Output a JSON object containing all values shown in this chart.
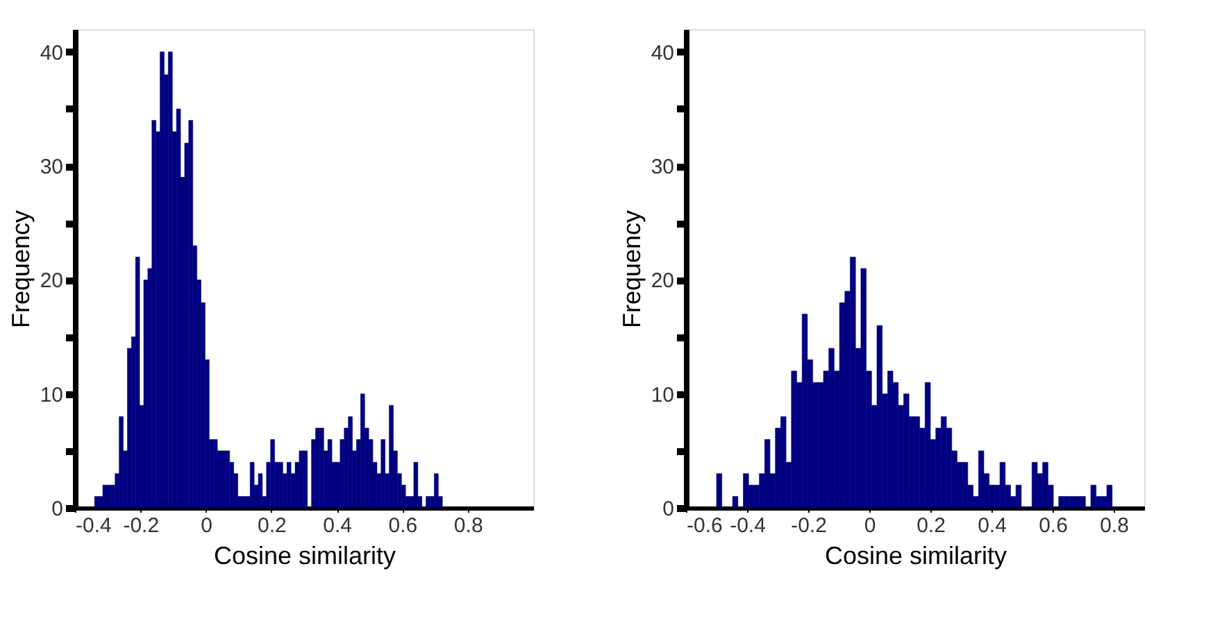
{
  "chart_data": [
    {
      "type": "histogram",
      "xlabel": "Cosine similarity",
      "ylabel": "Frequency",
      "color": "#000080",
      "grid": false,
      "bins": [
        -0.34,
        -0.3275,
        -0.315,
        -0.3025,
        -0.29,
        -0.2775,
        -0.265,
        -0.2525,
        -0.24,
        -0.2275,
        -0.215,
        -0.2025,
        -0.19,
        -0.1775,
        -0.165,
        -0.1525,
        -0.14,
        -0.1275,
        -0.115,
        -0.1025,
        -0.09,
        -0.0775,
        -0.065,
        -0.0525,
        -0.04,
        -0.0275,
        -0.015,
        -0.0025,
        0.01,
        0.0225,
        0.035,
        0.0475,
        0.06,
        0.0725,
        0.085,
        0.0975,
        0.11,
        0.1225,
        0.135,
        0.1475,
        0.16,
        0.1725,
        0.185,
        0.1975,
        0.21,
        0.2225,
        0.235,
        0.2475,
        0.26,
        0.2725,
        0.285,
        0.2975,
        0.31,
        0.3225,
        0.335,
        0.3475,
        0.36,
        0.3725,
        0.385,
        0.3975,
        0.41,
        0.4225,
        0.435,
        0.4475,
        0.46,
        0.4725,
        0.485,
        0.4975,
        0.51,
        0.5225,
        0.535,
        0.5475,
        0.56,
        0.5725,
        0.585,
        0.5975,
        0.61,
        0.6225,
        0.635,
        0.6475,
        0.66,
        0.6725,
        0.685,
        0.6975,
        0.71,
        0.7225
      ],
      "values": [
        1,
        1,
        2,
        2,
        2,
        3,
        8,
        5,
        14,
        15,
        22,
        9,
        20,
        21,
        34,
        33,
        40,
        38,
        40,
        33,
        35,
        29,
        32,
        34,
        23,
        20,
        18,
        13,
        6,
        6,
        5,
        5,
        5,
        4,
        3,
        1,
        1,
        1,
        4,
        2,
        3,
        1,
        4,
        6,
        4,
        4,
        3,
        4,
        3,
        4,
        5,
        5,
        0,
        6,
        7,
        7,
        5,
        6,
        4,
        4,
        6,
        7,
        8,
        5,
        6,
        10,
        7,
        6,
        4,
        3,
        6,
        3,
        9,
        5,
        3,
        2,
        1,
        1,
        4,
        1,
        0,
        1,
        1,
        3,
        1
      ],
      "xlim": [
        -0.4,
        1.0
      ],
      "xticks": [
        -0.4,
        -0.2,
        0,
        0.2,
        0.4,
        0.6,
        0.8
      ],
      "ylim": [
        0,
        42
      ],
      "yticks": [
        0,
        {
          "value": 5,
          "label": null
        },
        10,
        {
          "value": 15,
          "label": null
        },
        20,
        {
          "value": 25,
          "label": null
        },
        30,
        {
          "value": 35,
          "label": null
        },
        40
      ]
    },
    {
      "type": "histogram",
      "xlabel": "Cosine similarity",
      "ylabel": "Frequency",
      "color": "#000080",
      "grid": false,
      "bins": [
        -0.5,
        -0.4825,
        -0.465,
        -0.4475,
        -0.43,
        -0.4125,
        -0.395,
        -0.3775,
        -0.36,
        -0.3425,
        -0.325,
        -0.3075,
        -0.29,
        -0.2725,
        -0.255,
        -0.2375,
        -0.22,
        -0.2025,
        -0.185,
        -0.1675,
        -0.15,
        -0.1325,
        -0.115,
        -0.0975,
        -0.08,
        -0.0625,
        -0.045,
        -0.0275,
        -0.01,
        0.0075,
        0.025,
        0.0425,
        0.06,
        0.0775,
        0.095,
        0.1125,
        0.13,
        0.1475,
        0.165,
        0.1825,
        0.2,
        0.2175,
        0.235,
        0.2525,
        0.27,
        0.2875,
        0.305,
        0.3225,
        0.34,
        0.3575,
        0.375,
        0.3925,
        0.41,
        0.4275,
        0.445,
        0.4625,
        0.48,
        0.4975,
        0.515,
        0.5325,
        0.55,
        0.5675,
        0.585,
        0.6025,
        0.62,
        0.6375,
        0.655,
        0.6725,
        0.69,
        0.7075,
        0.725,
        0.7425,
        0.76,
        0.7775,
        0.795
      ],
      "values": [
        3,
        0,
        0,
        1,
        0,
        3,
        2,
        2,
        3,
        6,
        3,
        7,
        8,
        4,
        12,
        11,
        17,
        13,
        11,
        11,
        12,
        14,
        12,
        18,
        19,
        22,
        14,
        21,
        12,
        9,
        16,
        10,
        12,
        11,
        9,
        10,
        8,
        8,
        7,
        11,
        6,
        7,
        8,
        7,
        5,
        4,
        4,
        2,
        1,
        5,
        3,
        2,
        2,
        4,
        2,
        1,
        2,
        0,
        0,
        4,
        3,
        4,
        2,
        0,
        1,
        1,
        1,
        1,
        1,
        0,
        2,
        1,
        1,
        2
      ],
      "xlim": [
        -0.6,
        0.9
      ],
      "xticks": [
        -0.6,
        -0.4,
        -0.2,
        0,
        0.2,
        0.4,
        0.6,
        0.8
      ],
      "ylim": [
        0,
        42
      ],
      "yticks": [
        0,
        {
          "value": 5,
          "label": null
        },
        10,
        {
          "value": 15,
          "label": null
        },
        20,
        {
          "value": 25,
          "label": null
        },
        30,
        {
          "value": 35,
          "label": null
        },
        40
      ]
    }
  ]
}
